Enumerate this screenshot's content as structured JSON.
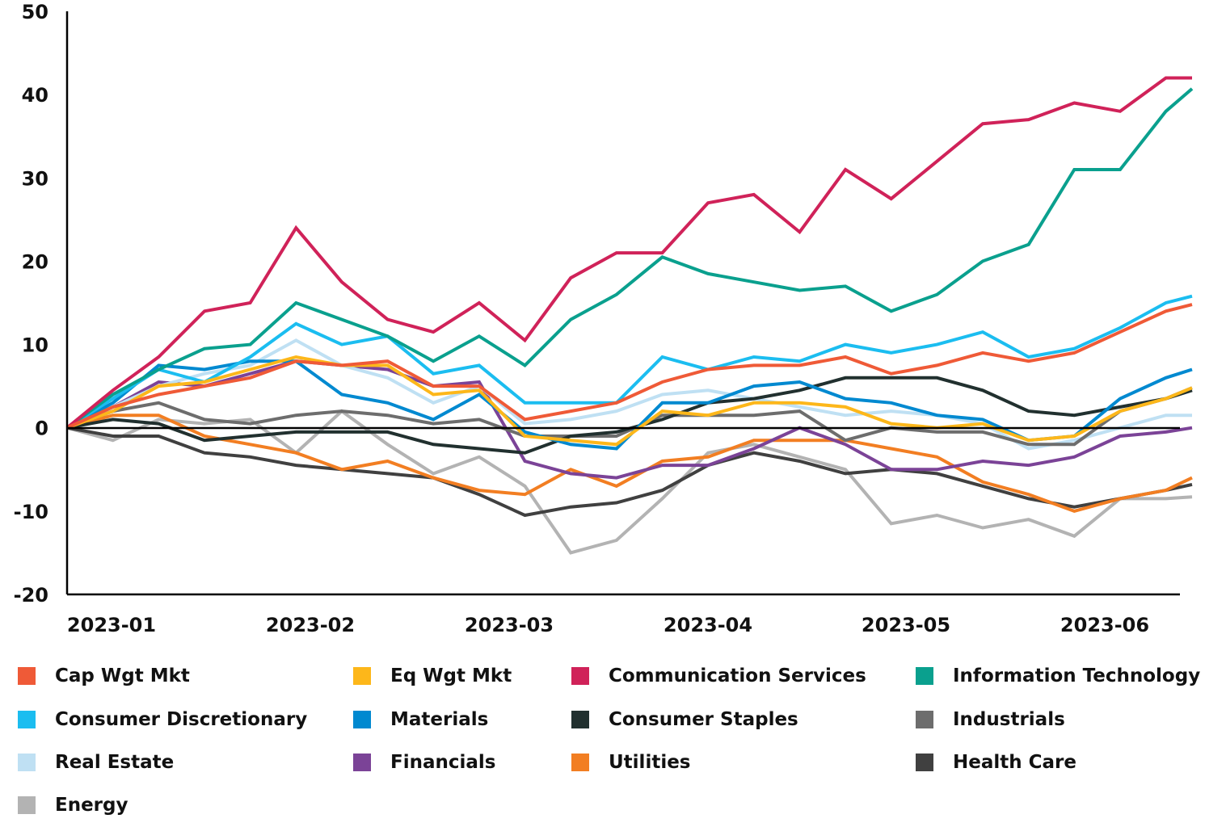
{
  "chart_data": {
    "type": "line",
    "title": "",
    "xlabel": "",
    "ylabel": "",
    "ylim": [
      -20,
      50
    ],
    "yticks": [
      "50",
      "40",
      "30",
      "20",
      "10",
      "0",
      "-10",
      "-20"
    ],
    "xlim": [
      "2022-12-26",
      "2023-06-16"
    ],
    "xticks": [
      "2023-01",
      "2023-02",
      "2023-03",
      "2023-04",
      "2023-05",
      "2023-06"
    ],
    "grid": false,
    "zero_line": true,
    "legend_position": "bottom",
    "x": [
      "2022-12-26",
      "2023-01-02",
      "2023-01-09",
      "2023-01-16",
      "2023-01-23",
      "2023-01-30",
      "2023-02-06",
      "2023-02-13",
      "2023-02-20",
      "2023-02-27",
      "2023-03-06",
      "2023-03-13",
      "2023-03-20",
      "2023-03-27",
      "2023-04-03",
      "2023-04-10",
      "2023-04-17",
      "2023-04-24",
      "2023-05-01",
      "2023-05-08",
      "2023-05-15",
      "2023-05-22",
      "2023-05-29",
      "2023-06-05",
      "2023-06-12",
      "2023-06-16"
    ],
    "series": [
      {
        "name": "Cap Wgt Mkt",
        "color": "#ef5a37",
        "values": [
          0,
          2.5,
          4,
          5,
          6,
          8,
          7.5,
          8,
          5,
          5,
          1,
          2,
          3,
          5.5,
          7,
          7.5,
          7.5,
          8.5,
          6.5,
          7.5,
          9,
          8,
          9,
          11.5,
          14,
          14.8
        ]
      },
      {
        "name": "Eq Wgt Mkt",
        "color": "#fdb71a",
        "values": [
          0,
          2,
          5,
          5.5,
          7,
          8.5,
          7.5,
          7.5,
          4,
          4.5,
          -1,
          -1.5,
          -2,
          2,
          1.5,
          3,
          3,
          2.5,
          0.5,
          0,
          0.5,
          -1.5,
          -1,
          2,
          3.5,
          4.8
        ]
      },
      {
        "name": "Communication Services",
        "color": "#d02259",
        "values": [
          0,
          4.5,
          8.5,
          14,
          15,
          24,
          17.5,
          13,
          11.5,
          15,
          10.5,
          18,
          21,
          21,
          27,
          28,
          23.5,
          31,
          27.5,
          32,
          36.5,
          37,
          39,
          38,
          42,
          42
        ]
      },
      {
        "name": "Information Technology",
        "color": "#0aa08e",
        "values": [
          0,
          4,
          7,
          9.5,
          10,
          15,
          13,
          11,
          8,
          11,
          7.5,
          13,
          16,
          20.5,
          18.5,
          17.5,
          16.5,
          17,
          14,
          16,
          20,
          22,
          31,
          31,
          38,
          40.7
        ]
      },
      {
        "name": "Consumer Discretionary",
        "color": "#1bbdf0",
        "values": [
          0,
          3.5,
          7,
          5.5,
          8.5,
          12.5,
          10,
          11,
          6.5,
          7.5,
          3,
          3,
          3,
          8.5,
          7,
          8.5,
          8,
          10,
          9,
          10,
          11.5,
          8.5,
          9.5,
          12,
          15,
          15.8
        ]
      },
      {
        "name": "Materials",
        "color": "#0089d0",
        "values": [
          0,
          3,
          7.5,
          7,
          8,
          8,
          4,
          3,
          1,
          4,
          -0.5,
          -2,
          -2.5,
          3,
          3,
          5,
          5.5,
          3.5,
          3,
          1.5,
          1,
          -1.5,
          -1,
          3.5,
          6,
          7
        ]
      },
      {
        "name": "Consumer Staples",
        "color": "#21302f",
        "values": [
          0,
          1,
          0.5,
          -1.5,
          -1,
          -0.5,
          -0.5,
          -0.5,
          -2,
          -2.5,
          -3,
          -1,
          -0.5,
          1,
          3,
          3.5,
          4.5,
          6,
          6,
          6,
          4.5,
          2,
          1.5,
          2.5,
          3.5,
          4.5
        ]
      },
      {
        "name": "Industrials",
        "color": "#6d6d6d",
        "values": [
          0,
          2,
          3,
          1,
          0.5,
          1.5,
          2,
          1.5,
          0.5,
          1,
          -1,
          -1,
          -1,
          1.5,
          1.5,
          1.5,
          2,
          -1.5,
          0,
          -0.5,
          -0.5,
          -2,
          -2,
          2,
          3.5,
          4.8
        ]
      },
      {
        "name": "Real Estate",
        "color": "#bfe0f3",
        "values": [
          0,
          2.5,
          5,
          6.5,
          7.5,
          10.5,
          7.5,
          6,
          3,
          5,
          0.5,
          1,
          2,
          4,
          4.5,
          3.5,
          2.5,
          1.5,
          2,
          1.5,
          0.5,
          -2.5,
          -1.5,
          0,
          1.5,
          1.5
        ]
      },
      {
        "name": "Financials",
        "color": "#7b4397",
        "values": [
          0,
          2.5,
          5.5,
          5,
          6.5,
          8,
          7.5,
          7,
          5,
          5.5,
          -4,
          -5.5,
          -6,
          -4.5,
          -4.5,
          -2.5,
          0,
          -2,
          -5,
          -5,
          -4,
          -4.5,
          -3.5,
          -1,
          -0.5,
          0
        ]
      },
      {
        "name": "Utilities",
        "color": "#f27e22",
        "values": [
          0,
          1.5,
          1.5,
          -1,
          -2,
          -3,
          -5,
          -4,
          -6,
          -7.5,
          -8,
          -5,
          -7,
          -4,
          -3.5,
          -1.5,
          -1.5,
          -1.5,
          -2.5,
          -3.5,
          -6.5,
          -8,
          -10,
          -8.5,
          -7.5,
          -6
        ]
      },
      {
        "name": "Health Care",
        "color": "#404040",
        "values": [
          0,
          -1,
          -1,
          -3,
          -3.5,
          -4.5,
          -5,
          -5.5,
          -6,
          -8,
          -10.5,
          -9.5,
          -9,
          -7.5,
          -4.5,
          -3,
          -4,
          -5.5,
          -5,
          -5.5,
          -7,
          -8.5,
          -9.5,
          -8.5,
          -7.5,
          -6.8
        ]
      },
      {
        "name": "Energy",
        "color": "#b3b3b3",
        "values": [
          0,
          -1.5,
          1,
          0.5,
          1,
          -3,
          2,
          -2,
          -5.5,
          -3.5,
          -7,
          -15,
          -13.5,
          -8.5,
          -3,
          -2,
          -3.5,
          -5,
          -11.5,
          -10.5,
          -12,
          -11,
          -13,
          -8.5,
          -8.5,
          -8.3
        ]
      }
    ],
    "legend_order": [
      "Cap Wgt Mkt",
      "Eq Wgt Mkt",
      "Communication Services",
      "Information Technology",
      "Consumer Discretionary",
      "Materials",
      "Consumer Staples",
      "Industrials",
      "Real Estate",
      "Financials",
      "Utilities",
      "Health Care",
      "Energy"
    ]
  }
}
